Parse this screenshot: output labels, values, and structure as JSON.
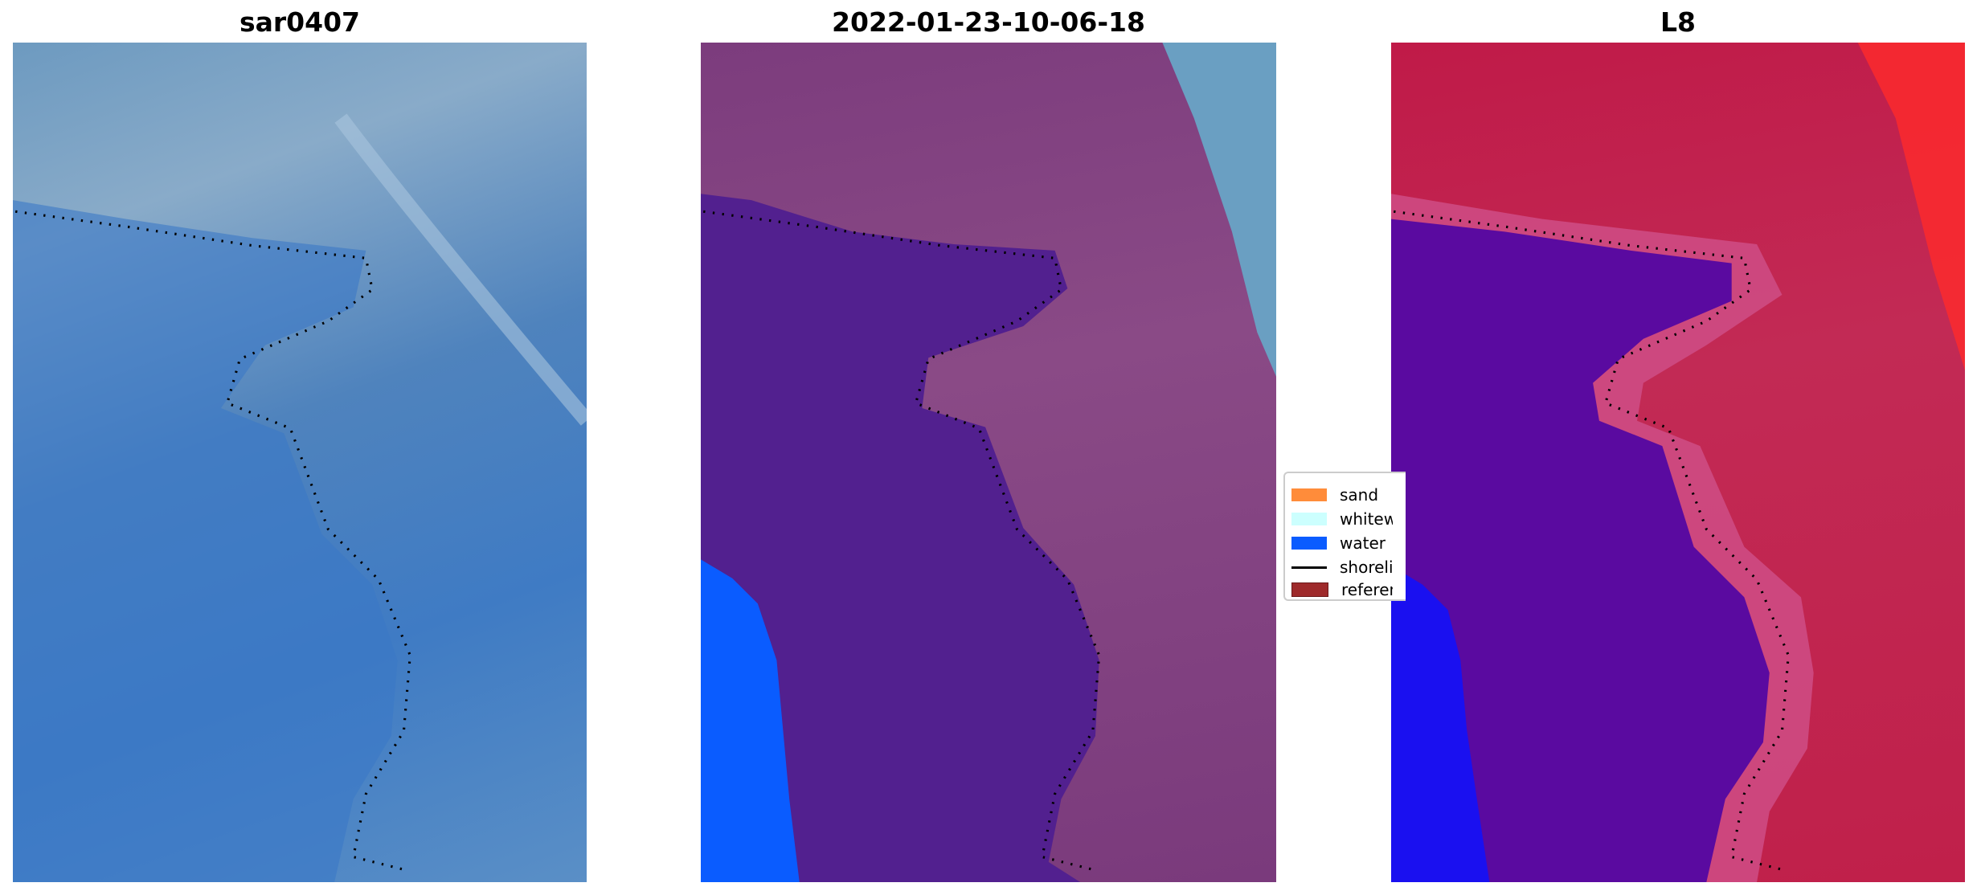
{
  "panels": [
    {
      "title": "sar0407"
    },
    {
      "title": "2022-01-23-10-06-18"
    },
    {
      "title": "L8"
    }
  ],
  "legend": {
    "items": [
      {
        "label": "sand",
        "color": "#ff8c3a"
      },
      {
        "label": "whitewater",
        "color": "#ccfffe"
      },
      {
        "label": "water",
        "color": "#0a5cff"
      },
      {
        "label": "shoreline",
        "color": "#000000"
      },
      {
        "label": "reference shoreline",
        "color": "#9e2a2b"
      }
    ]
  },
  "colors": {
    "classified_water_overlay": "#52208f",
    "l8_water": "#5a0aa0",
    "l8_land": "#c01a48"
  }
}
